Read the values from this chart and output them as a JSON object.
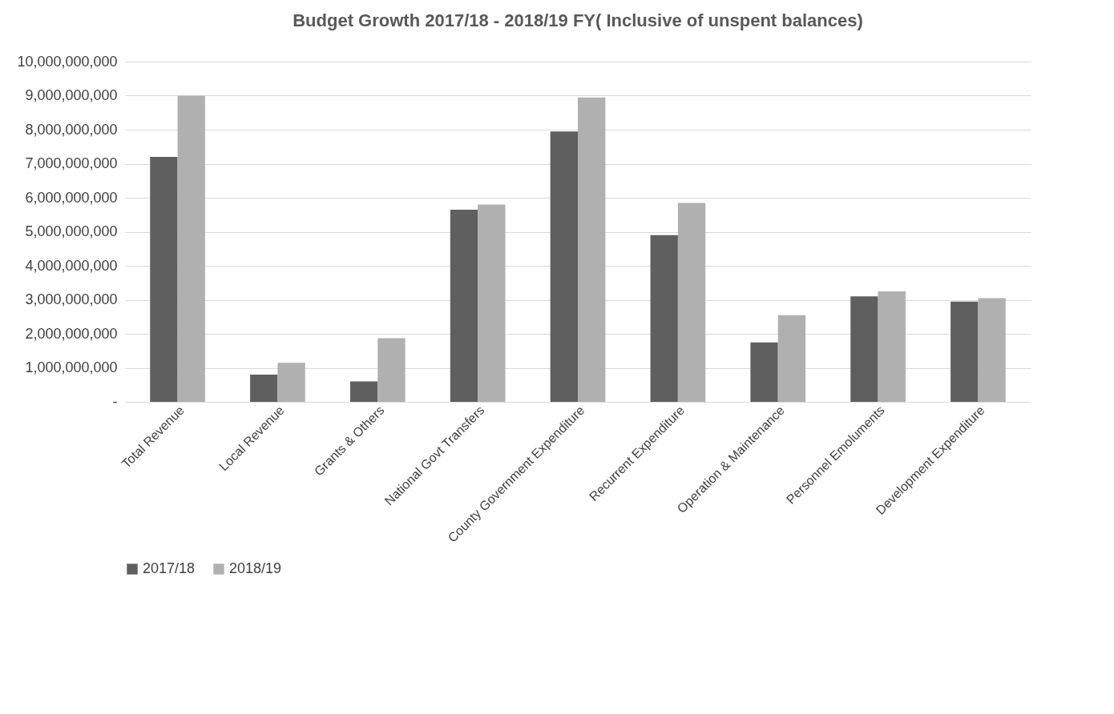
{
  "chart_data": {
    "type": "bar",
    "title": "Budget Growth 2017/18 - 2018/19  FY( Inclusive of unspent balances)",
    "categories": [
      "Total Revenue",
      "Local Revenue",
      "Grants & Others",
      "National Govt Transfers",
      "County Government  Expenditure",
      "Recurrent Expenditure",
      "Operation & Maintenance",
      "Personnel Emoluments",
      "Development Expenditure"
    ],
    "series": [
      {
        "name": "2017/18",
        "color": "#5f5f5f",
        "values": [
          7200000000,
          800000000,
          600000000,
          5650000000,
          7950000000,
          4900000000,
          1750000000,
          3100000000,
          2950000000
        ]
      },
      {
        "name": "2018/19",
        "color": "#b0b0b0",
        "values": [
          9000000000,
          1150000000,
          1870000000,
          5800000000,
          8950000000,
          5850000000,
          2550000000,
          3250000000,
          3050000000
        ]
      }
    ],
    "ylim": [
      0,
      10000000000
    ],
    "yticks": [
      {
        "value": 0,
        "label": "-"
      },
      {
        "value": 1000000000,
        "label": "1,000,000,000"
      },
      {
        "value": 2000000000,
        "label": "2,000,000,000"
      },
      {
        "value": 3000000000,
        "label": "3,000,000,000"
      },
      {
        "value": 4000000000,
        "label": "4,000,000,000"
      },
      {
        "value": 5000000000,
        "label": "5,000,000,000"
      },
      {
        "value": 6000000000,
        "label": "6,000,000,000"
      },
      {
        "value": 7000000000,
        "label": "7,000,000,000"
      },
      {
        "value": 8000000000,
        "label": "8,000,000,000"
      },
      {
        "value": 9000000000,
        "label": "9,000,000,000"
      },
      {
        "value": 10000000000,
        "label": "10,000,000,000"
      }
    ],
    "grid": "y",
    "legend": "bottom"
  }
}
